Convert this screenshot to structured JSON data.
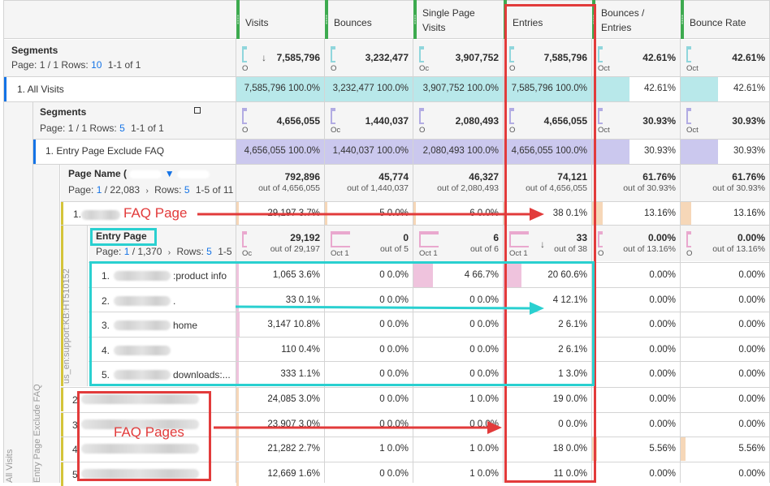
{
  "columns": [
    {
      "label": "Visits"
    },
    {
      "label": "Bounces"
    },
    {
      "label": "Single Page Visits"
    },
    {
      "label": "Entries"
    },
    {
      "label": "Bounces / Entries"
    },
    {
      "label": "Bounce Rate"
    }
  ],
  "top_segments": {
    "title": "Segments",
    "page_label": "Page: 1 / 1 Rows:",
    "rows_value": "10",
    "range": "1-1 of 1",
    "totals": [
      "7,585,796",
      "3,232,477",
      "3,907,752",
      "7,585,796",
      "42.61%",
      "42.61%"
    ],
    "spark_labels": [
      "O",
      "O",
      "Oc",
      "O",
      "Oct",
      "Oct"
    ],
    "sort_icon": "arrow-down-icon"
  },
  "all_visits_row": {
    "label": "1. All Visits",
    "values": [
      {
        "v": "7,585,796",
        "p": "100.0%"
      },
      {
        "v": "3,232,477",
        "p": "100.0%"
      },
      {
        "v": "3,907,752",
        "p": "100.0%"
      },
      {
        "v": "7,585,796",
        "p": "100.0%"
      },
      {
        "v": "42.61%"
      },
      {
        "v": "42.61%"
      }
    ],
    "color": "#b8e8ea"
  },
  "nested_segments": {
    "title": "Segments",
    "page_label": "Page: 1 / 1 Rows:",
    "rows_value": "5",
    "range": "1-1 of 1",
    "totals": [
      "4,656,055",
      "1,440,037",
      "2,080,493",
      "4,656,055",
      "30.93%",
      "30.93%"
    ],
    "spark_labels": [
      "O",
      "Oc",
      "O",
      "O",
      "Oct",
      "Oct"
    ]
  },
  "entry_page_exclude_row": {
    "label": "1. Entry Page Exclude FAQ",
    "values": [
      {
        "v": "4,656,055",
        "p": "100.0%"
      },
      {
        "v": "1,440,037",
        "p": "100.0%"
      },
      {
        "v": "2,080,493",
        "p": "100.0%"
      },
      {
        "v": "4,656,055",
        "p": "100.0%"
      },
      {
        "v": "30.93%"
      },
      {
        "v": "30.93%"
      }
    ],
    "color": "#cbc8ee"
  },
  "page_name_block": {
    "title": "Page Name (",
    "page_label": "Page:",
    "page_current": "1",
    "page_total": "/ 22,083",
    "rows_label": "Rows:",
    "rows_value": "5",
    "range": "1-5 of 11",
    "filter_icon": "filter-icon",
    "totals": [
      {
        "v": "792,896",
        "s": "out of 4,656,055"
      },
      {
        "v": "45,774",
        "s": "out of 1,440,037"
      },
      {
        "v": "46,327",
        "s": "out of 2,080,493"
      },
      {
        "v": "74,121",
        "s": "out of 4,656,055"
      },
      {
        "v": "61.76%",
        "s": "out of 30.93%"
      },
      {
        "v": "61.76%",
        "s": "out of 30.93%"
      }
    ]
  },
  "faq_row": {
    "index": "1.",
    "annotation": "FAQ Page",
    "values": [
      {
        "v": "29,197",
        "p": "3.7%"
      },
      {
        "v": "5",
        "p": "0.0%"
      },
      {
        "v": "6",
        "p": "0.0%"
      },
      {
        "v": "38",
        "p": "0.1%"
      },
      {
        "v": "13.16%"
      },
      {
        "v": "13.16%"
      }
    ]
  },
  "entry_page_block": {
    "title": "Entry Page",
    "page_label": "Page:",
    "page_current": "1",
    "page_total": "/ 1,370",
    "rows_label": "Rows:",
    "rows_value": "5",
    "range": "1-5",
    "side_label": "us_en:support:KB:HT510152",
    "totals": [
      {
        "v": "29,192",
        "s": "out of 29,197",
        "spark": "Oc"
      },
      {
        "v": "0",
        "s": "out of 5",
        "spark": "Oct 1"
      },
      {
        "v": "6",
        "s": "out of 6",
        "spark": "Oct 1"
      },
      {
        "v": "33",
        "s": "out of 38",
        "spark": "Oct 1"
      },
      {
        "v": "0.00%",
        "s": "out of 13.16%",
        "spark": "O"
      },
      {
        "v": "0.00%",
        "s": "out of 13.16%",
        "spark": "O"
      }
    ],
    "rows": [
      {
        "label_prefix": "1.",
        "label_suffix": ":product info",
        "values": [
          "1,065",
          "3.6%",
          "0",
          "0.0%",
          "4",
          "66.7%",
          "20",
          "60.6%",
          "0.00%",
          "0.00%"
        ],
        "fractions": [
          0.036,
          0,
          0.667,
          0.606
        ]
      },
      {
        "label_prefix": "2.",
        "label_suffix": ".",
        "values": [
          "33",
          "0.1%",
          "0",
          "0.0%",
          "0",
          "0.0%",
          "4",
          "12.1%",
          "0.00%",
          "0.00%"
        ],
        "fractions": [
          0.001,
          0,
          0,
          0.121
        ]
      },
      {
        "label_prefix": "3.",
        "label_suffix": "home",
        "values": [
          "3,147",
          "10.8%",
          "0",
          "0.0%",
          "0",
          "0.0%",
          "2",
          "6.1%",
          "0.00%",
          "0.00%"
        ],
        "fractions": [
          0.108,
          0,
          0,
          0.061
        ]
      },
      {
        "label_prefix": "4.",
        "label_suffix": "",
        "values": [
          "110",
          "0.4%",
          "0",
          "0.0%",
          "0",
          "0.0%",
          "2",
          "6.1%",
          "0.00%",
          "0.00%"
        ],
        "fractions": [
          0.004,
          0,
          0,
          0.061
        ]
      },
      {
        "label_prefix": "5.",
        "label_suffix": "downloads:...",
        "values": [
          "333",
          "1.1%",
          "0",
          "0.0%",
          "0",
          "0.0%",
          "1",
          "3.0%",
          "0.00%",
          "0.00%"
        ],
        "fractions": [
          0.011,
          0,
          0,
          0.03
        ]
      }
    ]
  },
  "faq_pages": {
    "annotation": "FAQ Pages",
    "rows": [
      {
        "index": "2",
        "values": [
          "24,085",
          "3.0%",
          "0",
          "0.0%",
          "1",
          "0.0%",
          "19",
          "0.0%",
          "0.00%",
          "0.00%"
        ]
      },
      {
        "index": "3",
        "values": [
          "23,907",
          "3.0%",
          "0",
          "0.0%",
          "0",
          "0.0%",
          "0",
          "0.0%",
          "0.00%",
          "0.00%"
        ]
      },
      {
        "index": "4",
        "values": [
          "21,282",
          "2.7%",
          "1",
          "0.0%",
          "1",
          "0.0%",
          "18",
          "0.0%",
          "5.56%",
          "5.56%"
        ]
      },
      {
        "index": "5",
        "values": [
          "12,669",
          "1.6%",
          "0",
          "0.0%",
          "1",
          "0.0%",
          "11",
          "0.0%",
          "0.00%",
          "0.00%"
        ]
      }
    ]
  },
  "side_labels": {
    "all_visits": "All Visits",
    "entry_page_exclude": "Entry Page Exclude FAQ"
  },
  "colors": {
    "teal": "#b8e8ea",
    "lavender": "#cbc8ee",
    "pink": "#efc3dd",
    "peach": "#f6d7b8",
    "header_green": "#3daa4f",
    "annotation_red": "#e23b3b",
    "annotation_teal": "#2ad0d0",
    "link_blue": "#1473e6"
  }
}
